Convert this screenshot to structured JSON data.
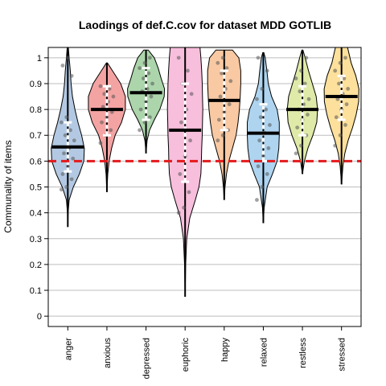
{
  "chart_data": {
    "type": "violin",
    "title": "Laodings of def.C.cov for dataset MDD GOTLIB",
    "xlabel": "",
    "ylabel": "Communality of items",
    "ylim": [
      -0.04,
      1.04
    ],
    "yticks": [
      0,
      0.1,
      0.2,
      0.3,
      0.4,
      0.5,
      0.6,
      0.7,
      0.8,
      0.9,
      1
    ],
    "ytick_labels": [
      "0",
      "0.1",
      "0.2",
      "0.3",
      "0.4",
      "0.5",
      "0.6",
      "0.7",
      "0.8",
      "0.9",
      "1"
    ],
    "grid": true,
    "reference_line": {
      "value": 0.6,
      "color": "#e41a1c",
      "style": "dashed"
    },
    "categories": [
      "anger",
      "anxious",
      "depressed",
      "euphoric",
      "happy",
      "relaxed",
      "restless",
      "stressed"
    ],
    "colors": [
      "#b3c9e3",
      "#f4a3a3",
      "#acd5ac",
      "#f7bfdc",
      "#f8c9a3",
      "#aed4f0",
      "#dfeaa8",
      "#fce09b"
    ],
    "series": [
      {
        "category": "anger",
        "mean": 0.655,
        "sd_low": 0.56,
        "sd_high": 0.75,
        "min": 0.345,
        "max": 1.04,
        "density": [
          [
            0.345,
            0
          ],
          [
            0.4,
            0.012
          ],
          [
            0.45,
            0.05
          ],
          [
            0.5,
            0.2
          ],
          [
            0.55,
            0.42
          ],
          [
            0.6,
            0.58
          ],
          [
            0.65,
            0.6
          ],
          [
            0.7,
            0.5
          ],
          [
            0.75,
            0.37
          ],
          [
            0.8,
            0.26
          ],
          [
            0.85,
            0.17
          ],
          [
            0.9,
            0.12
          ],
          [
            0.95,
            0.09
          ],
          [
            1.0,
            0.05
          ],
          [
            1.04,
            0.02
          ]
        ],
        "points": [
          0.49,
          0.5,
          0.53,
          0.55,
          0.58,
          0.61,
          0.63,
          0.65,
          0.68,
          0.7,
          0.72,
          0.75,
          0.77,
          0.93,
          0.97,
          1.0
        ]
      },
      {
        "category": "anxious",
        "mean": 0.8,
        "sd_low": 0.7,
        "sd_high": 0.89,
        "min": 0.48,
        "max": 0.98,
        "density": [
          [
            0.48,
            0
          ],
          [
            0.55,
            0.03
          ],
          [
            0.6,
            0.08
          ],
          [
            0.65,
            0.17
          ],
          [
            0.7,
            0.3
          ],
          [
            0.75,
            0.53
          ],
          [
            0.8,
            0.67
          ],
          [
            0.85,
            0.67
          ],
          [
            0.9,
            0.5
          ],
          [
            0.95,
            0.2
          ],
          [
            0.98,
            0.02
          ]
        ],
        "points": [
          0.67,
          0.7,
          0.72,
          0.75,
          0.77,
          0.79,
          0.81,
          0.83,
          0.85,
          0.86,
          0.88,
          0.89
        ]
      },
      {
        "category": "depressed",
        "mean": 0.865,
        "sd_low": 0.76,
        "sd_high": 0.96,
        "min": 0.63,
        "max": 1.03,
        "density": [
          [
            0.63,
            0
          ],
          [
            0.68,
            0.04
          ],
          [
            0.72,
            0.13
          ],
          [
            0.76,
            0.3
          ],
          [
            0.8,
            0.5
          ],
          [
            0.85,
            0.66
          ],
          [
            0.88,
            0.67
          ],
          [
            0.92,
            0.55
          ],
          [
            0.96,
            0.44
          ],
          [
            1.0,
            0.3
          ],
          [
            1.03,
            0.08
          ]
        ],
        "points": [
          0.72,
          0.75,
          0.77,
          0.8,
          0.83,
          0.85,
          0.87,
          0.88,
          0.9,
          0.92,
          0.94,
          0.96,
          0.98,
          1.0
        ]
      },
      {
        "category": "euphoric",
        "mean": 0.72,
        "sd_low": 0.52,
        "sd_high": 0.9,
        "min": 0.075,
        "max": 1.04,
        "density": [
          [
            0.075,
            0
          ],
          [
            0.2,
            0.02
          ],
          [
            0.3,
            0.06
          ],
          [
            0.38,
            0.17
          ],
          [
            0.45,
            0.37
          ],
          [
            0.5,
            0.5
          ],
          [
            0.55,
            0.57
          ],
          [
            0.6,
            0.59
          ],
          [
            0.65,
            0.6
          ],
          [
            0.7,
            0.62
          ],
          [
            0.75,
            0.63
          ],
          [
            0.8,
            0.64
          ],
          [
            0.85,
            0.63
          ],
          [
            0.9,
            0.62
          ],
          [
            0.95,
            0.6
          ],
          [
            1.0,
            0.57
          ],
          [
            1.04,
            0.54
          ]
        ],
        "points": [
          0.4,
          0.42,
          0.48,
          0.55,
          0.62,
          0.68,
          0.75,
          0.8,
          0.86,
          0.9,
          0.95,
          1.0
        ]
      },
      {
        "category": "happy",
        "mean": 0.835,
        "sd_low": 0.72,
        "sd_high": 0.95,
        "min": 0.45,
        "max": 1.03,
        "density": [
          [
            0.45,
            0
          ],
          [
            0.5,
            0.03
          ],
          [
            0.55,
            0.08
          ],
          [
            0.6,
            0.17
          ],
          [
            0.65,
            0.3
          ],
          [
            0.7,
            0.43
          ],
          [
            0.75,
            0.5
          ],
          [
            0.8,
            0.55
          ],
          [
            0.85,
            0.58
          ],
          [
            0.9,
            0.6
          ],
          [
            0.95,
            0.6
          ],
          [
            1.0,
            0.53
          ],
          [
            1.03,
            0.3
          ]
        ],
        "points": [
          0.68,
          0.7,
          0.72,
          0.76,
          0.79,
          0.82,
          0.85,
          0.88,
          0.91,
          0.94,
          0.96,
          0.98,
          1.0
        ]
      },
      {
        "category": "relaxed",
        "mean": 0.708,
        "sd_low": 0.6,
        "sd_high": 0.82,
        "min": 0.36,
        "max": 1.02,
        "density": [
          [
            0.36,
            0
          ],
          [
            0.42,
            0.03
          ],
          [
            0.5,
            0.14
          ],
          [
            0.55,
            0.33
          ],
          [
            0.6,
            0.5
          ],
          [
            0.65,
            0.56
          ],
          [
            0.7,
            0.58
          ],
          [
            0.75,
            0.58
          ],
          [
            0.8,
            0.5
          ],
          [
            0.85,
            0.3
          ],
          [
            0.9,
            0.18
          ],
          [
            0.95,
            0.13
          ],
          [
            1.0,
            0.07
          ],
          [
            1.02,
            0.02
          ]
        ],
        "points": [
          0.45,
          0.5,
          0.55,
          0.58,
          0.62,
          0.65,
          0.68,
          0.71,
          0.74,
          0.77,
          0.8,
          0.84,
          0.88,
          0.95,
          1.0
        ]
      },
      {
        "category": "restless",
        "mean": 0.8,
        "sd_low": 0.7,
        "sd_high": 0.89,
        "min": 0.55,
        "max": 1.03,
        "density": [
          [
            0.55,
            0
          ],
          [
            0.6,
            0.07
          ],
          [
            0.65,
            0.2
          ],
          [
            0.7,
            0.38
          ],
          [
            0.75,
            0.52
          ],
          [
            0.8,
            0.55
          ],
          [
            0.85,
            0.5
          ],
          [
            0.9,
            0.36
          ],
          [
            0.95,
            0.22
          ],
          [
            1.0,
            0.1
          ],
          [
            1.03,
            0.02
          ]
        ],
        "points": [
          0.63,
          0.66,
          0.7,
          0.73,
          0.76,
          0.78,
          0.8,
          0.82,
          0.84,
          0.87,
          0.9,
          0.92,
          0.95,
          1.0
        ]
      },
      {
        "category": "stressed",
        "mean": 0.85,
        "sd_low": 0.76,
        "sd_high": 0.93,
        "min": 0.51,
        "max": 1.04,
        "density": [
          [
            0.51,
            0
          ],
          [
            0.58,
            0.05
          ],
          [
            0.63,
            0.12
          ],
          [
            0.68,
            0.24
          ],
          [
            0.73,
            0.4
          ],
          [
            0.78,
            0.53
          ],
          [
            0.83,
            0.62
          ],
          [
            0.88,
            0.63
          ],
          [
            0.93,
            0.52
          ],
          [
            0.98,
            0.35
          ],
          [
            1.04,
            0.22
          ]
        ],
        "points": [
          0.66,
          0.7,
          0.74,
          0.77,
          0.8,
          0.82,
          0.84,
          0.86,
          0.88,
          0.9,
          0.92,
          0.95,
          0.98,
          1.0
        ]
      }
    ]
  }
}
